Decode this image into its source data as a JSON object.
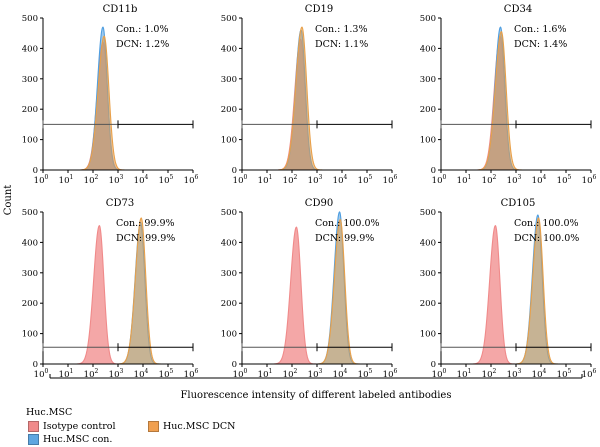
{
  "figure": {
    "y_axis_label": "Count",
    "x_axis_label": "Fluorescence intensity of different labeled antibodies"
  },
  "legend": {
    "title": "Huc.MSC",
    "items": [
      {
        "label": "Isotype control",
        "color": "#f08a8a"
      },
      {
        "label": "Huc.MSC DCN",
        "color": "#f0a050"
      },
      {
        "label": "Huc.MSC con.",
        "color": "#5fa6e0"
      }
    ]
  },
  "colors": {
    "isotype": "#f08a8a",
    "dcn": "#e8a04a",
    "con": "#4f9ee0",
    "overlap": "#b9ad8a",
    "gate": "#555555"
  },
  "chart_data": [
    {
      "type": "area",
      "title": "CD11b",
      "xscale": "log",
      "xlim": [
        1,
        1000000
      ],
      "ylim": [
        0,
        500
      ],
      "x_tick_labels": [
        "10^0",
        "10^1",
        "10^2",
        "10^3",
        "10^4",
        "10^5",
        "10^6"
      ],
      "y_ticks": [
        0,
        100,
        200,
        300,
        400,
        500
      ],
      "annotations": [
        "Con.: 1.0%",
        "DCN: 1.2%"
      ],
      "series": [
        {
          "name": "Isotype control",
          "peak_x": 250,
          "peak_count": 420,
          "log_width": 0.2
        },
        {
          "name": "Huc.MSC con.",
          "peak_x": 250,
          "peak_count": 470,
          "log_width": 0.19
        },
        {
          "name": "Huc.MSC DCN",
          "peak_x": 280,
          "peak_count": 440,
          "log_width": 0.21
        }
      ],
      "gate": {
        "x_start": 1,
        "x_split": 1000,
        "x_end": 1000000,
        "count": 150
      }
    },
    {
      "type": "area",
      "title": "CD19",
      "xscale": "log",
      "xlim": [
        1,
        1000000
      ],
      "ylim": [
        0,
        500
      ],
      "x_tick_labels": [
        "10^0",
        "10^1",
        "10^2",
        "10^3",
        "10^4",
        "10^5",
        "10^6"
      ],
      "y_ticks": [
        0,
        100,
        200,
        300,
        400,
        500
      ],
      "annotations": [
        "Con.: 1.3%",
        "DCN: 1.1%"
      ],
      "series": [
        {
          "name": "Isotype control",
          "peak_x": 220,
          "peak_count": 430,
          "log_width": 0.2
        },
        {
          "name": "Huc.MSC con.",
          "peak_x": 230,
          "peak_count": 460,
          "log_width": 0.19
        },
        {
          "name": "Huc.MSC DCN",
          "peak_x": 250,
          "peak_count": 470,
          "log_width": 0.21
        }
      ],
      "gate": {
        "x_start": 1,
        "x_split": 1000,
        "x_end": 1000000,
        "count": 150
      }
    },
    {
      "type": "area",
      "title": "CD34",
      "xscale": "log",
      "xlim": [
        1,
        1000000
      ],
      "ylim": [
        0,
        500
      ],
      "x_tick_labels": [
        "10^0",
        "10^1",
        "10^2",
        "10^3",
        "10^4",
        "10^5",
        "10^6"
      ],
      "y_ticks": [
        0,
        100,
        200,
        300,
        400,
        500
      ],
      "annotations": [
        "Con.: 1.6%",
        "DCN: 1.4%"
      ],
      "series": [
        {
          "name": "Isotype control",
          "peak_x": 230,
          "peak_count": 440,
          "log_width": 0.2
        },
        {
          "name": "Huc.MSC con.",
          "peak_x": 240,
          "peak_count": 470,
          "log_width": 0.19
        },
        {
          "name": "Huc.MSC DCN",
          "peak_x": 260,
          "peak_count": 455,
          "log_width": 0.21
        }
      ],
      "gate": {
        "x_start": 1,
        "x_split": 1000,
        "x_end": 1000000,
        "count": 150
      }
    },
    {
      "type": "area",
      "title": "CD73",
      "xscale": "log",
      "xlim": [
        1,
        1000000
      ],
      "ylim": [
        0,
        500
      ],
      "x_tick_labels": [
        "10^0",
        "10^1",
        "10^2",
        "10^3",
        "10^4",
        "10^5",
        "10^6"
      ],
      "y_ticks": [
        0,
        100,
        200,
        300,
        400,
        500
      ],
      "annotations": [
        "Con.: 99.9%",
        "DCN: 99.9%"
      ],
      "series": [
        {
          "name": "Isotype control",
          "peak_x": 180,
          "peak_count": 455,
          "log_width": 0.2
        },
        {
          "name": "Huc.MSC con.",
          "peak_x": 8000,
          "peak_count": 465,
          "log_width": 0.19
        },
        {
          "name": "Huc.MSC DCN",
          "peak_x": 8500,
          "peak_count": 480,
          "log_width": 0.2
        }
      ],
      "gate": {
        "x_start": 1,
        "x_split": 1000,
        "x_end": 1000000,
        "count": 55
      }
    },
    {
      "type": "area",
      "title": "CD90",
      "xscale": "log",
      "xlim": [
        1,
        1000000
      ],
      "ylim": [
        0,
        500
      ],
      "x_tick_labels": [
        "10^0",
        "10^1",
        "10^2",
        "10^3",
        "10^4",
        "10^5",
        "10^6"
      ],
      "y_ticks": [
        0,
        100,
        200,
        300,
        400,
        500
      ],
      "annotations": [
        "Con.: 100.0%",
        "DCN: 99.9%"
      ],
      "series": [
        {
          "name": "Isotype control",
          "peak_x": 150,
          "peak_count": 450,
          "log_width": 0.2
        },
        {
          "name": "Huc.MSC con.",
          "peak_x": 8000,
          "peak_count": 500,
          "log_width": 0.19
        },
        {
          "name": "Huc.MSC DCN",
          "peak_x": 8500,
          "peak_count": 475,
          "log_width": 0.2
        }
      ],
      "gate": {
        "x_start": 1,
        "x_split": 1000,
        "x_end": 1000000,
        "count": 55
      }
    },
    {
      "type": "area",
      "title": "CD105",
      "xscale": "log",
      "xlim": [
        1,
        1000000
      ],
      "ylim": [
        0,
        500
      ],
      "x_tick_labels": [
        "10^0",
        "10^1",
        "10^2",
        "10^3",
        "10^4",
        "10^5",
        "10^6"
      ],
      "y_ticks": [
        0,
        100,
        200,
        300,
        400,
        500
      ],
      "annotations": [
        "Con.: 100.0%",
        "DCN: 100.0%"
      ],
      "series": [
        {
          "name": "Isotype control",
          "peak_x": 150,
          "peak_count": 455,
          "log_width": 0.2
        },
        {
          "name": "Huc.MSC con.",
          "peak_x": 7500,
          "peak_count": 490,
          "log_width": 0.19
        },
        {
          "name": "Huc.MSC DCN",
          "peak_x": 8000,
          "peak_count": 480,
          "log_width": 0.2
        }
      ],
      "gate": {
        "x_start": 1,
        "x_split": 1000,
        "x_end": 1000000,
        "count": 55
      }
    }
  ]
}
